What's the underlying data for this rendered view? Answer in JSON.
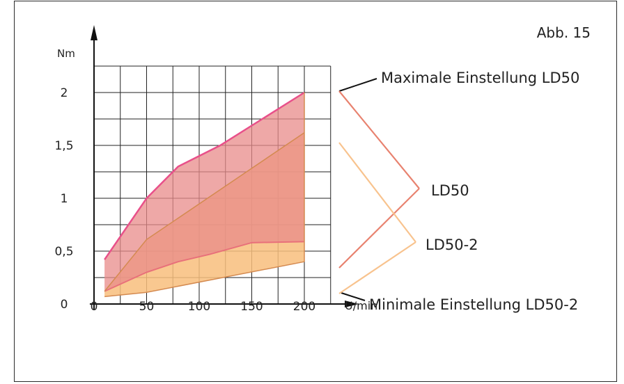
{
  "figure_label": "Abb. 15",
  "chart_data": {
    "type": "area",
    "ylabel": "Nm",
    "xlabel": "U/min",
    "xlim": [
      0,
      225
    ],
    "ylim": [
      0,
      2.25
    ],
    "x_ticks": [
      {
        "value": 0,
        "label": "0"
      },
      {
        "value": 50,
        "label": "50"
      },
      {
        "value": 100,
        "label": "100"
      },
      {
        "value": 150,
        "label": "150"
      },
      {
        "value": 200,
        "label": "200"
      }
    ],
    "y_ticks": [
      {
        "value": 0,
        "label": "0"
      },
      {
        "value": 0.5,
        "label": "0,5"
      },
      {
        "value": 1,
        "label": "1"
      },
      {
        "value": 1.5,
        "label": "1,5"
      },
      {
        "value": 2,
        "label": "2"
      }
    ],
    "grid": true,
    "bands": [
      {
        "label": "LD50",
        "color": "#e88b89",
        "upper": [
          [
            10,
            0.42
          ],
          [
            50,
            1.0
          ],
          [
            80,
            1.3
          ],
          [
            120,
            1.5
          ],
          [
            160,
            1.75
          ],
          [
            200,
            2.0
          ]
        ],
        "lower": [
          [
            10,
            0.12
          ],
          [
            50,
            0.3
          ],
          [
            80,
            0.4
          ],
          [
            110,
            0.47
          ],
          [
            150,
            0.58
          ],
          [
            200,
            0.59
          ]
        ]
      },
      {
        "label": "LD50-2",
        "color": "#f8be7c",
        "upper": [
          [
            10,
            0.12
          ],
          [
            50,
            0.61
          ],
          [
            200,
            1.62
          ]
        ],
        "lower": [
          [
            10,
            0.07
          ],
          [
            50,
            0.11
          ],
          [
            200,
            0.4
          ]
        ]
      }
    ],
    "annotations": {
      "max": "Maximale Einstellung LD50",
      "ld50": "LD50",
      "ld502": "LD50-2",
      "min": "Minimale Einstellung LD50-2"
    },
    "colors": {
      "pink_edge": "#e8508a",
      "ld50_edge": "#e8707a",
      "orange_edge": "#d48a50",
      "ld50_line": "#e8826f",
      "ld502_line": "#f8c38e",
      "axis": "#111111"
    }
  }
}
